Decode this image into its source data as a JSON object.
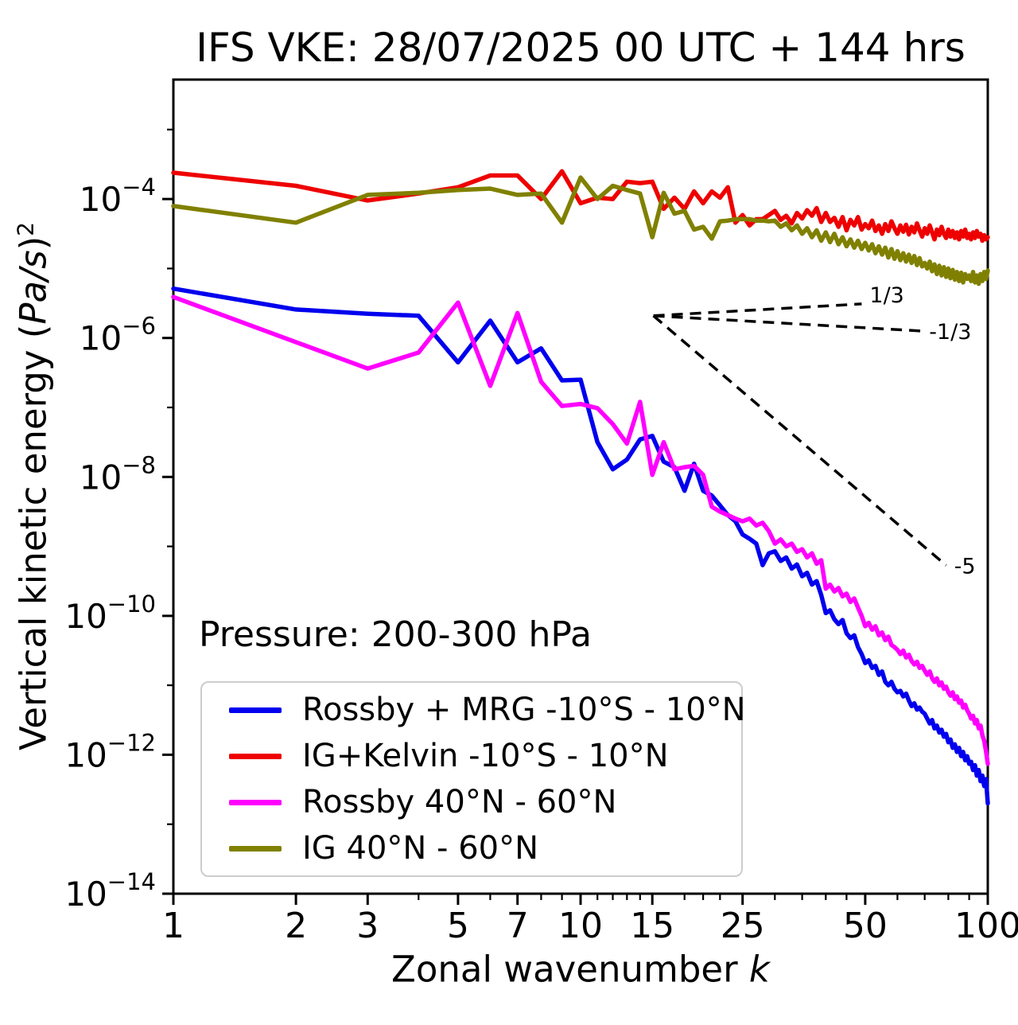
{
  "title": "IFS VKE: 28/07/2025 00 UTC + 144 hrs",
  "xlabel": {
    "prefix": "Zonal wavenumber ",
    "symbol": "k"
  },
  "ylabel": {
    "prefix": "Vertical kinetic energy (",
    "units": "Pa/s",
    "close": ")",
    "exponent": "2"
  },
  "pressure_annotation": "Pressure: 200-300 hPa",
  "chart_data": {
    "type": "line",
    "x_scale": "log",
    "y_scale": "log",
    "xlim": [
      1,
      100
    ],
    "ylim_log10": [
      -14,
      -2.28
    ],
    "grid": false,
    "legend_position": "lower-left",
    "x_ticks": [
      1,
      2,
      3,
      5,
      7,
      10,
      15,
      25,
      50,
      100
    ],
    "x_minor_ticks": [
      4,
      6,
      8,
      9,
      11,
      12,
      13,
      14,
      18,
      20,
      22,
      30,
      35,
      40,
      45,
      60,
      70,
      80,
      90
    ],
    "y_tick_exponents_labeled": [
      -4,
      -6,
      -8,
      -10,
      -12,
      -14
    ],
    "y_tick_exponents_all": [
      -3,
      -4,
      -5,
      -6,
      -7,
      -8,
      -9,
      -10,
      -11,
      -12,
      -13,
      -14
    ],
    "k_start": 1,
    "series": [
      {
        "name": "Rossby + MRG -10°S - 10°N",
        "color": "#0000ee",
        "log10_values": [
          -5.29,
          -5.59,
          -5.65,
          -5.68,
          -6.35,
          -5.75,
          -6.35,
          -6.15,
          -6.61,
          -6.6,
          -7.5,
          -7.89,
          -7.75,
          -7.46,
          -7.41,
          -7.78,
          -7.86,
          -8.2,
          -7.81,
          -8.2,
          -8.27,
          -8.41,
          -8.55,
          -8.64,
          -8.83,
          -8.89,
          -8.96,
          -9.27,
          -9.1,
          -9.07,
          -9.21,
          -9.16,
          -9.32,
          -9.26,
          -9.43,
          -9.38,
          -9.55,
          -9.5,
          -9.7,
          -9.96,
          -9.92,
          -10.05,
          -10.12,
          -10.06,
          -10.25,
          -10.32,
          -10.28,
          -10.45,
          -10.55,
          -10.68,
          -10.64,
          -10.75,
          -10.72,
          -10.85,
          -10.8,
          -10.95,
          -11.0,
          -10.95,
          -11.05,
          -11.1,
          -11.08,
          -11.16,
          -11.12,
          -11.22,
          -11.3,
          -11.26,
          -11.35,
          -11.32,
          -11.38,
          -11.41,
          -11.48,
          -11.55,
          -11.5,
          -11.62,
          -11.58,
          -11.68,
          -11.64,
          -11.74,
          -11.7,
          -11.82,
          -11.78,
          -11.9,
          -11.85,
          -11.96,
          -11.9,
          -12.02,
          -11.96,
          -12.08,
          -12.02,
          -12.13,
          -12.1,
          -12.22,
          -12.15,
          -12.3,
          -12.22,
          -12.38,
          -12.3,
          -12.45,
          -12.35,
          -12.7
        ]
      },
      {
        "name": "IG+Kelvin -10°S - 10°N",
        "color": "#ee0000",
        "log10_values": [
          -3.62,
          -3.81,
          -4.02,
          -3.92,
          -3.83,
          -3.66,
          -3.66,
          -4.0,
          -3.6,
          -4.06,
          -3.98,
          -4.0,
          -3.75,
          -3.77,
          -3.75,
          -4.14,
          -3.98,
          -4.14,
          -3.89,
          -4.06,
          -3.89,
          -3.98,
          -3.83,
          -4.34,
          -4.23,
          -4.38,
          -4.29,
          -4.29,
          -4.23,
          -4.17,
          -4.3,
          -4.24,
          -4.35,
          -4.2,
          -4.28,
          -4.16,
          -4.24,
          -4.13,
          -4.33,
          -4.2,
          -4.33,
          -4.27,
          -4.4,
          -4.26,
          -4.45,
          -4.3,
          -4.38,
          -4.26,
          -4.44,
          -4.36,
          -4.42,
          -4.31,
          -4.46,
          -4.38,
          -4.5,
          -4.36,
          -4.46,
          -4.32,
          -4.42,
          -4.5,
          -4.38,
          -4.47,
          -4.37,
          -4.51,
          -4.4,
          -4.48,
          -4.35,
          -4.45,
          -4.54,
          -4.42,
          -4.5,
          -4.38,
          -4.48,
          -4.58,
          -4.44,
          -4.52,
          -4.4,
          -4.5,
          -4.56,
          -4.44,
          -4.54,
          -4.46,
          -4.56,
          -4.48,
          -4.58,
          -4.46,
          -4.54,
          -4.44,
          -4.56,
          -4.5,
          -4.58,
          -4.48,
          -4.56,
          -4.46,
          -4.54,
          -4.5,
          -4.6,
          -4.52,
          -4.58,
          -4.55
        ]
      },
      {
        "name": "Rossby 40°N - 60°N",
        "color": "#ff00ff",
        "log10_values": [
          -5.41,
          -6.06,
          -6.44,
          -6.21,
          -5.49,
          -6.69,
          -5.64,
          -6.63,
          -6.98,
          -6.95,
          -7.01,
          -7.24,
          -7.52,
          -6.92,
          -7.97,
          -7.5,
          -7.89,
          -7.86,
          -7.84,
          -7.97,
          -8.43,
          -8.5,
          -8.55,
          -8.6,
          -8.64,
          -8.6,
          -8.7,
          -8.66,
          -8.78,
          -8.96,
          -8.9,
          -9.0,
          -8.96,
          -9.08,
          -9.04,
          -9.16,
          -9.1,
          -9.25,
          -9.2,
          -9.61,
          -9.55,
          -9.65,
          -9.6,
          -9.72,
          -9.68,
          -9.8,
          -9.75,
          -9.88,
          -10.0,
          -10.15,
          -10.1,
          -10.2,
          -10.15,
          -10.28,
          -10.24,
          -10.35,
          -10.3,
          -10.42,
          -10.45,
          -10.49,
          -10.55,
          -10.5,
          -10.6,
          -10.56,
          -10.65,
          -10.7,
          -10.66,
          -10.75,
          -10.72,
          -10.79,
          -10.85,
          -10.8,
          -10.9,
          -10.95,
          -10.9,
          -11.0,
          -10.96,
          -11.05,
          -11.02,
          -11.1,
          -11.15,
          -11.1,
          -11.2,
          -11.16,
          -11.25,
          -11.22,
          -11.32,
          -11.28,
          -11.36,
          -11.41,
          -11.48,
          -11.44,
          -11.55,
          -11.5,
          -11.62,
          -11.58,
          -11.72,
          -11.8,
          -11.95,
          -12.13
        ]
      },
      {
        "name": "IG 40°N - 60°N",
        "color": "#808000",
        "log10_values": [
          -4.1,
          -4.34,
          -3.94,
          -3.91,
          -3.87,
          -3.85,
          -3.94,
          -3.92,
          -4.34,
          -3.69,
          -4.0,
          -3.81,
          -3.87,
          -3.92,
          -4.55,
          -3.91,
          -4.21,
          -4.17,
          -4.44,
          -4.4,
          -4.57,
          -4.32,
          -4.31,
          -4.29,
          -4.29,
          -4.29,
          -4.31,
          -4.31,
          -4.32,
          -4.31,
          -4.4,
          -4.35,
          -4.45,
          -4.38,
          -4.5,
          -4.42,
          -4.55,
          -4.45,
          -4.6,
          -4.48,
          -4.62,
          -4.5,
          -4.65,
          -4.55,
          -4.68,
          -4.58,
          -4.7,
          -4.6,
          -4.72,
          -4.63,
          -4.74,
          -4.65,
          -4.78,
          -4.68,
          -4.8,
          -4.7,
          -4.84,
          -4.72,
          -4.86,
          -4.75,
          -4.88,
          -4.78,
          -4.9,
          -4.8,
          -4.92,
          -4.82,
          -4.95,
          -4.85,
          -4.97,
          -4.92,
          -5.0,
          -4.9,
          -5.04,
          -4.94,
          -5.08,
          -4.96,
          -5.1,
          -4.98,
          -5.12,
          -5.0,
          -5.14,
          -5.02,
          -5.16,
          -5.05,
          -5.18,
          -5.06,
          -5.2,
          -5.08,
          -5.15,
          -5.1,
          -5.18,
          -5.05,
          -5.2,
          -5.1,
          -5.22,
          -5.08,
          -5.18,
          -5.05,
          -5.15,
          -5.03
        ]
      }
    ],
    "slope_guides": [
      {
        "label": "1/3",
        "slope": 0.3333,
        "k0": 15.1,
        "log10_v0": -5.68,
        "k1": 49.0
      },
      {
        "label": "-1/3",
        "slope": -0.3333,
        "k0": 15.1,
        "log10_v0": -5.68,
        "k1": 68.6
      },
      {
        "label": "-5",
        "slope": -5.0,
        "k0": 15.1,
        "log10_v0": -5.68,
        "k1": 79.0
      }
    ],
    "guide_color": "#000000"
  }
}
